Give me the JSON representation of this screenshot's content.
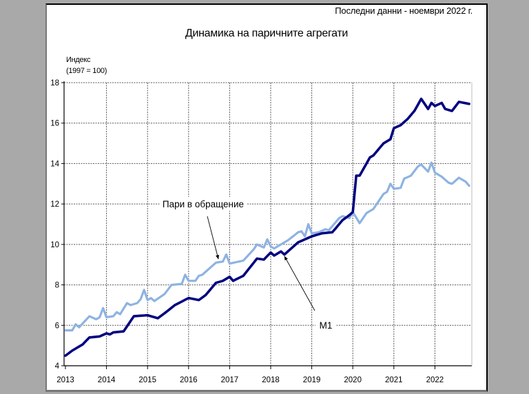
{
  "header": {
    "latest_data": "Последни данни - ноември 2022 г.",
    "title": "Динамика на паричните агрегати"
  },
  "axis": {
    "ylabel_line1": "Индекс",
    "ylabel_line2": "(1997 = 100)"
  },
  "annotations": {
    "currency_label": "Пари в обращение",
    "m1_label": "M1"
  },
  "colors": {
    "m1": "#000080",
    "currency": "#8db3e2",
    "grid": "#555555",
    "background": "#a9a9a9"
  },
  "chart_data": {
    "type": "line",
    "title": "Динамика на паричните агрегати",
    "subtitle": "Последни данни - ноември 2022 г.",
    "xlabel": "",
    "ylabel": "Индекс (1997 = 100)",
    "ylim": [
      4,
      18
    ],
    "yticks": [
      4,
      6,
      8,
      10,
      12,
      14,
      16,
      18
    ],
    "xticks": [
      "2013",
      "2014",
      "2015",
      "2016",
      "2017",
      "2018",
      "2019",
      "2020",
      "2021",
      "2022"
    ],
    "x_start": "2013-01",
    "x_end": "2022-11",
    "frequency": "monthly",
    "grid": true,
    "series": [
      {
        "name": "M1",
        "color": "#000080",
        "keypoints": [
          [
            "2013-01",
            4.5
          ],
          [
            "2013-03",
            4.75
          ],
          [
            "2013-06",
            5.05
          ],
          [
            "2013-08",
            5.4
          ],
          [
            "2013-11",
            5.45
          ],
          [
            "2014-01",
            5.6
          ],
          [
            "2014-02",
            5.55
          ],
          [
            "2014-03",
            5.65
          ],
          [
            "2014-06",
            5.7
          ],
          [
            "2014-09",
            6.45
          ],
          [
            "2015-01",
            6.5
          ],
          [
            "2015-02",
            6.45
          ],
          [
            "2015-04",
            6.35
          ],
          [
            "2015-06",
            6.6
          ],
          [
            "2015-09",
            7.0
          ],
          [
            "2016-01",
            7.35
          ],
          [
            "2016-04",
            7.25
          ],
          [
            "2016-06",
            7.5
          ],
          [
            "2016-09",
            8.1
          ],
          [
            "2016-11",
            8.2
          ],
          [
            "2017-01",
            8.4
          ],
          [
            "2017-02",
            8.2
          ],
          [
            "2017-05",
            8.45
          ],
          [
            "2017-09",
            9.3
          ],
          [
            "2017-11",
            9.25
          ],
          [
            "2018-01",
            9.6
          ],
          [
            "2018-02",
            9.45
          ],
          [
            "2018-04",
            9.65
          ],
          [
            "2018-05",
            9.5
          ],
          [
            "2018-09",
            10.1
          ],
          [
            "2018-11",
            10.25
          ],
          [
            "2019-01",
            10.4
          ],
          [
            "2019-04",
            10.55
          ],
          [
            "2019-07",
            10.6
          ],
          [
            "2019-10",
            11.2
          ],
          [
            "2019-12",
            11.45
          ],
          [
            "2020-01",
            11.6
          ],
          [
            "2020-02",
            13.4
          ],
          [
            "2020-03",
            13.4
          ],
          [
            "2020-06",
            14.3
          ],
          [
            "2020-07",
            14.4
          ],
          [
            "2020-10",
            15.0
          ],
          [
            "2020-12",
            15.2
          ],
          [
            "2021-01",
            15.75
          ],
          [
            "2021-03",
            15.9
          ],
          [
            "2021-05",
            16.2
          ],
          [
            "2021-07",
            16.6
          ],
          [
            "2021-09",
            17.2
          ],
          [
            "2021-11",
            16.7
          ],
          [
            "2021-12",
            17.0
          ],
          [
            "2022-01",
            16.85
          ],
          [
            "2022-03",
            17.0
          ],
          [
            "2022-04",
            16.7
          ],
          [
            "2022-06",
            16.6
          ],
          [
            "2022-08",
            17.05
          ],
          [
            "2022-11",
            16.95
          ]
        ]
      },
      {
        "name": "Пари в обращение",
        "color": "#8db3e2",
        "keypoints": [
          [
            "2013-01",
            5.75
          ],
          [
            "2013-03",
            5.75
          ],
          [
            "2013-04",
            6.05
          ],
          [
            "2013-05",
            5.9
          ],
          [
            "2013-08",
            6.45
          ],
          [
            "2013-10",
            6.3
          ],
          [
            "2013-11",
            6.4
          ],
          [
            "2013-12",
            6.85
          ],
          [
            "2014-01",
            6.4
          ],
          [
            "2014-03",
            6.45
          ],
          [
            "2014-04",
            6.65
          ],
          [
            "2014-05",
            6.55
          ],
          [
            "2014-07",
            7.1
          ],
          [
            "2014-08",
            7.0
          ],
          [
            "2014-10",
            7.1
          ],
          [
            "2014-11",
            7.3
          ],
          [
            "2014-12",
            7.75
          ],
          [
            "2015-01",
            7.25
          ],
          [
            "2015-02",
            7.35
          ],
          [
            "2015-03",
            7.2
          ],
          [
            "2015-06",
            7.55
          ],
          [
            "2015-08",
            8.0
          ],
          [
            "2015-11",
            8.05
          ],
          [
            "2015-12",
            8.5
          ],
          [
            "2016-01",
            8.2
          ],
          [
            "2016-03",
            8.2
          ],
          [
            "2016-04",
            8.45
          ],
          [
            "2016-05",
            8.5
          ],
          [
            "2016-08",
            8.95
          ],
          [
            "2016-09",
            9.1
          ],
          [
            "2016-11",
            9.15
          ],
          [
            "2016-12",
            9.5
          ],
          [
            "2017-01",
            9.05
          ],
          [
            "2017-05",
            9.2
          ],
          [
            "2017-08",
            9.75
          ],
          [
            "2017-09",
            10.0
          ],
          [
            "2017-11",
            9.85
          ],
          [
            "2017-12",
            10.25
          ],
          [
            "2018-01",
            9.9
          ],
          [
            "2018-02",
            9.8
          ],
          [
            "2018-04",
            10.0
          ],
          [
            "2018-06",
            10.2
          ],
          [
            "2018-09",
            10.6
          ],
          [
            "2018-10",
            10.65
          ],
          [
            "2018-11",
            10.4
          ],
          [
            "2018-12",
            11.0
          ],
          [
            "2019-01",
            10.55
          ],
          [
            "2019-03",
            10.6
          ],
          [
            "2019-05",
            10.75
          ],
          [
            "2019-06",
            10.7
          ],
          [
            "2019-09",
            11.3
          ],
          [
            "2019-10",
            11.4
          ],
          [
            "2019-12",
            11.3
          ],
          [
            "2020-01",
            11.6
          ],
          [
            "2020-03",
            11.05
          ],
          [
            "2020-05",
            11.55
          ],
          [
            "2020-07",
            11.75
          ],
          [
            "2020-09",
            12.25
          ],
          [
            "2020-10",
            12.5
          ],
          [
            "2020-11",
            12.6
          ],
          [
            "2020-12",
            13.0
          ],
          [
            "2021-01",
            12.75
          ],
          [
            "2021-03",
            12.8
          ],
          [
            "2021-04",
            13.25
          ],
          [
            "2021-06",
            13.4
          ],
          [
            "2021-08",
            13.85
          ],
          [
            "2021-09",
            13.95
          ],
          [
            "2021-11",
            13.6
          ],
          [
            "2021-12",
            14.05
          ],
          [
            "2022-01",
            13.55
          ],
          [
            "2022-03",
            13.35
          ],
          [
            "2022-05",
            13.05
          ],
          [
            "2022-06",
            13.0
          ],
          [
            "2022-08",
            13.3
          ],
          [
            "2022-10",
            13.1
          ],
          [
            "2022-11",
            12.9
          ]
        ]
      }
    ]
  }
}
